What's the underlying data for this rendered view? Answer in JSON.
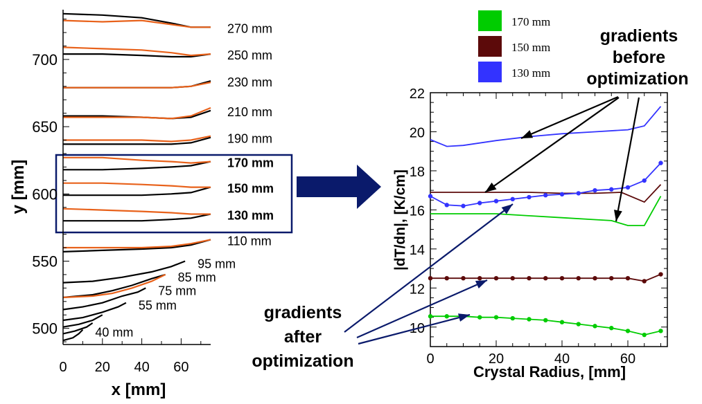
{
  "chart_data": [
    {
      "type": "line",
      "title": "",
      "xlabel": "x [mm]",
      "ylabel": "y [mm]",
      "xlim": [
        0,
        75
      ],
      "ylim": [
        488,
        737
      ],
      "xticks": [
        0,
        20,
        40,
        60
      ],
      "yticks": [
        500,
        550,
        600,
        650,
        700
      ],
      "interface_series": [
        {
          "label": "270 mm",
          "bold": false,
          "black": [
            [
              0,
              734
            ],
            [
              20,
              733
            ],
            [
              40,
              731
            ],
            [
              55,
              727
            ],
            [
              65,
              724
            ],
            [
              75,
              724
            ]
          ],
          "orange": [
            [
              0,
              729
            ],
            [
              20,
              728
            ],
            [
              40,
              729
            ],
            [
              55,
              726
            ],
            [
              65,
              724
            ],
            [
              75,
              724
            ]
          ]
        },
        {
          "label": "250 mm",
          "bold": false,
          "black": [
            [
              0,
              704
            ],
            [
              20,
              704
            ],
            [
              40,
              703
            ],
            [
              55,
              702
            ],
            [
              65,
              702
            ],
            [
              75,
              704
            ]
          ],
          "orange": [
            [
              0,
              709
            ],
            [
              20,
              708
            ],
            [
              40,
              707
            ],
            [
              55,
              705
            ],
            [
              65,
              703
            ],
            [
              75,
              704
            ]
          ]
        },
        {
          "label": "230 mm",
          "bold": false,
          "black": [
            [
              0,
              679
            ],
            [
              20,
              679
            ],
            [
              40,
              679
            ],
            [
              55,
              679
            ],
            [
              65,
              680
            ],
            [
              75,
              684
            ]
          ],
          "orange": [
            [
              0,
              679
            ],
            [
              20,
              679
            ],
            [
              40,
              679
            ],
            [
              55,
              679
            ],
            [
              65,
              680
            ],
            [
              75,
              683
            ]
          ]
        },
        {
          "label": "210 mm",
          "bold": false,
          "black": [
            [
              0,
              658
            ],
            [
              20,
              658
            ],
            [
              40,
              657
            ],
            [
              55,
              656
            ],
            [
              65,
              657
            ],
            [
              75,
              662
            ]
          ],
          "orange": [
            [
              0,
              657
            ],
            [
              20,
              657
            ],
            [
              40,
              657
            ],
            [
              55,
              656
            ],
            [
              65,
              658
            ],
            [
              75,
              664
            ]
          ]
        },
        {
          "label": "190 mm",
          "bold": false,
          "black": [
            [
              0,
              637
            ],
            [
              20,
              637
            ],
            [
              40,
              637
            ],
            [
              55,
              637
            ],
            [
              65,
              638
            ],
            [
              75,
              642
            ]
          ],
          "orange": [
            [
              0,
              640
            ],
            [
              20,
              640
            ],
            [
              40,
              640
            ],
            [
              55,
              639
            ],
            [
              65,
              640
            ],
            [
              75,
              643
            ]
          ]
        },
        {
          "label": "170 mm",
          "bold": true,
          "black": [
            [
              0,
              618
            ],
            [
              20,
              618
            ],
            [
              40,
              619
            ],
            [
              55,
              620
            ],
            [
              65,
              621
            ],
            [
              75,
              624
            ]
          ],
          "orange": [
            [
              0,
              627
            ],
            [
              20,
              627
            ],
            [
              40,
              625
            ],
            [
              55,
              624
            ],
            [
              65,
              623
            ],
            [
              75,
              624
            ]
          ]
        },
        {
          "label": "150 mm",
          "bold": true,
          "black": [
            [
              0,
              599
            ],
            [
              20,
              599
            ],
            [
              40,
              599
            ],
            [
              55,
              600
            ],
            [
              65,
              601
            ],
            [
              75,
              605
            ]
          ],
          "orange": [
            [
              0,
              608
            ],
            [
              20,
              608
            ],
            [
              40,
              607
            ],
            [
              55,
              606
            ],
            [
              65,
              605
            ],
            [
              75,
              605
            ]
          ]
        },
        {
          "label": "130 mm",
          "bold": true,
          "black": [
            [
              0,
              580
            ],
            [
              20,
              580
            ],
            [
              40,
              580
            ],
            [
              55,
              581
            ],
            [
              65,
              582
            ],
            [
              75,
              585
            ]
          ],
          "orange": [
            [
              0,
              589
            ],
            [
              20,
              588
            ],
            [
              40,
              587
            ],
            [
              55,
              586
            ],
            [
              65,
              585
            ],
            [
              75,
              585
            ]
          ]
        },
        {
          "label": "110 mm",
          "bold": false,
          "black": [
            [
              0,
              557
            ],
            [
              20,
              558
            ],
            [
              40,
              559
            ],
            [
              55,
              560
            ],
            [
              65,
              562
            ],
            [
              75,
              566
            ]
          ],
          "orange": [
            [
              0,
              560
            ],
            [
              20,
              560
            ],
            [
              40,
              560
            ],
            [
              55,
              561
            ],
            [
              65,
              563
            ],
            [
              75,
              566
            ]
          ]
        },
        {
          "label": "95 mm",
          "bold": false,
          "black": [
            [
              0,
              534
            ],
            [
              15,
              535
            ],
            [
              30,
              538
            ],
            [
              45,
              542
            ],
            [
              55,
              546
            ],
            [
              62,
              550
            ]
          ],
          "orange": []
        },
        {
          "label": "85 mm",
          "bold": false,
          "black": [
            [
              0,
              523
            ],
            [
              15,
              525
            ],
            [
              25,
              528
            ],
            [
              35,
              532
            ],
            [
              45,
              537
            ],
            [
              52,
              540
            ]
          ],
          "orange": [
            [
              0,
              523
            ],
            [
              15,
              524
            ],
            [
              25,
              526
            ],
            [
              35,
              530
            ],
            [
              45,
              535
            ],
            [
              52,
              540
            ]
          ]
        },
        {
          "label": "75 mm",
          "bold": false,
          "black": [
            [
              0,
              514
            ],
            [
              10,
              516
            ],
            [
              20,
              519
            ],
            [
              30,
              524
            ],
            [
              38,
              527
            ],
            [
              42,
              530
            ]
          ],
          "orange": []
        },
        {
          "label": "55 mm",
          "bold": false,
          "black": [
            [
              0,
              506
            ],
            [
              10,
              508
            ],
            [
              20,
              512
            ],
            [
              28,
              516
            ],
            [
              32,
              519
            ]
          ],
          "orange": []
        },
        {
          "label": "",
          "bold": false,
          "black": [
            [
              0,
              501
            ],
            [
              8,
              503
            ],
            [
              15,
              506
            ],
            [
              20,
              510
            ]
          ],
          "orange": []
        },
        {
          "label": "",
          "bold": false,
          "black": [
            [
              0,
              496
            ],
            [
              6,
              498
            ],
            [
              12,
              501
            ],
            [
              15,
              504
            ]
          ],
          "orange": []
        },
        {
          "label": "40 mm",
          "bold": false,
          "black": [
            [
              0,
              491
            ],
            [
              5,
              493
            ],
            [
              8,
              496
            ],
            [
              10,
              499
            ]
          ],
          "orange": []
        }
      ],
      "callout": {
        "arrow_color": "#0a1a6b"
      },
      "colors": {
        "black": "#000000",
        "orange": "#e8611a",
        "box": "#0a1a6b"
      }
    },
    {
      "type": "line",
      "title": "",
      "xlabel": "Crystal Radius, [mm]",
      "ylabel": "|dT/dn|, [K/cm]",
      "xlim": [
        0,
        72
      ],
      "ylim": [
        9,
        22
      ],
      "xticks": [
        0,
        20,
        40,
        60
      ],
      "yticks": [
        10,
        12,
        14,
        16,
        18,
        20,
        22
      ],
      "legend": {
        "position": "top",
        "entries": [
          {
            "label": "170 mm",
            "color": "#00cc00"
          },
          {
            "label": "150 mm",
            "color": "#5c0a0a"
          },
          {
            "label": "130 mm",
            "color": "#3333ff"
          }
        ]
      },
      "series": [
        {
          "group": "130 mm",
          "state": "before",
          "color": "#3333ff",
          "markers": false,
          "x": [
            0,
            5,
            10,
            20,
            30,
            40,
            50,
            60,
            65,
            70
          ],
          "y": [
            19.6,
            19.25,
            19.3,
            19.55,
            19.75,
            19.9,
            20.0,
            20.1,
            20.3,
            21.3
          ]
        },
        {
          "group": "150 mm",
          "state": "before",
          "color": "#5c0a0a",
          "markers": false,
          "x": [
            0,
            10,
            20,
            30,
            40,
            50,
            58,
            65,
            70
          ],
          "y": [
            16.9,
            16.9,
            16.9,
            16.9,
            16.85,
            16.85,
            16.9,
            16.4,
            17.3
          ]
        },
        {
          "group": "170 mm",
          "state": "before",
          "color": "#00cc00",
          "markers": false,
          "x": [
            0,
            10,
            20,
            30,
            40,
            50,
            55,
            60,
            65,
            70
          ],
          "y": [
            15.8,
            15.8,
            15.8,
            15.7,
            15.6,
            15.5,
            15.45,
            15.2,
            15.2,
            16.7
          ]
        },
        {
          "group": "130 mm",
          "state": "after",
          "color": "#3333ff",
          "markers": true,
          "x": [
            0,
            5,
            10,
            15,
            20,
            25,
            30,
            35,
            40,
            45,
            50,
            55,
            60,
            65,
            70
          ],
          "y": [
            16.7,
            16.25,
            16.2,
            16.35,
            16.45,
            16.55,
            16.65,
            16.75,
            16.8,
            16.85,
            17.0,
            17.05,
            17.15,
            17.5,
            18.4
          ]
        },
        {
          "group": "150 mm",
          "state": "after",
          "color": "#5c0a0a",
          "markers": true,
          "x": [
            0,
            5,
            10,
            15,
            20,
            25,
            30,
            35,
            40,
            45,
            50,
            55,
            60,
            65,
            70
          ],
          "y": [
            12.5,
            12.5,
            12.5,
            12.5,
            12.5,
            12.5,
            12.5,
            12.5,
            12.5,
            12.5,
            12.5,
            12.5,
            12.5,
            12.35,
            12.7
          ]
        },
        {
          "group": "170 mm",
          "state": "after",
          "color": "#00cc00",
          "markers": true,
          "x": [
            0,
            5,
            10,
            15,
            20,
            25,
            30,
            35,
            40,
            45,
            50,
            55,
            60,
            65,
            70
          ],
          "y": [
            10.55,
            10.55,
            10.55,
            10.5,
            10.5,
            10.45,
            10.4,
            10.35,
            10.25,
            10.15,
            10.05,
            9.95,
            9.8,
            9.6,
            9.8
          ]
        }
      ],
      "annotations": {
        "before": {
          "lines": [
            "gradients",
            "before",
            "optimization"
          ],
          "color": "#000000"
        },
        "after": {
          "lines": [
            "gradients",
            "after",
            "optimization"
          ],
          "color": "#0a1a6b"
        }
      }
    }
  ]
}
